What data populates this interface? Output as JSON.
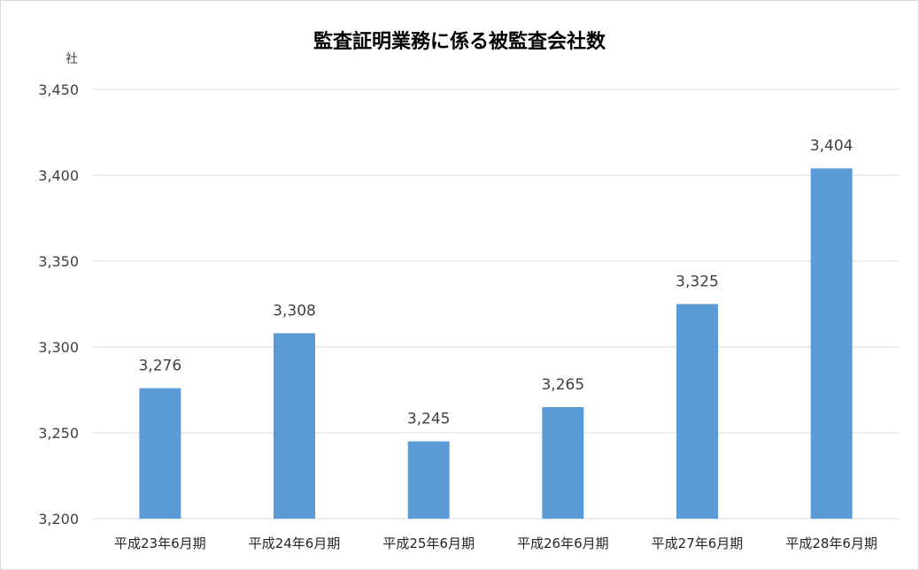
{
  "chart_data": {
    "type": "bar",
    "title": "監査証明業務に係る被監査会社数",
    "ylabel": "社",
    "xlabel": "",
    "categories": [
      "平成23年6月期",
      "平成24年6月期",
      "平成25年6月期",
      "平成26年6月期",
      "平成27年6月期",
      "平成28年6月期"
    ],
    "values": [
      3276,
      3308,
      3245,
      3265,
      3325,
      3404
    ],
    "data_labels": [
      "3,276",
      "3,308",
      "3,245",
      "3,265",
      "3,325",
      "3,404"
    ],
    "ylim": [
      3200,
      3450
    ],
    "yticks": [
      3200,
      3250,
      3300,
      3350,
      3400,
      3450
    ],
    "ytick_labels": [
      "3,200",
      "3,250",
      "3,300",
      "3,350",
      "3,400",
      "3,450"
    ],
    "grid": true,
    "legend": "none",
    "bar_color": "#5b9bd5",
    "grid_color": "#d9d9d9"
  }
}
